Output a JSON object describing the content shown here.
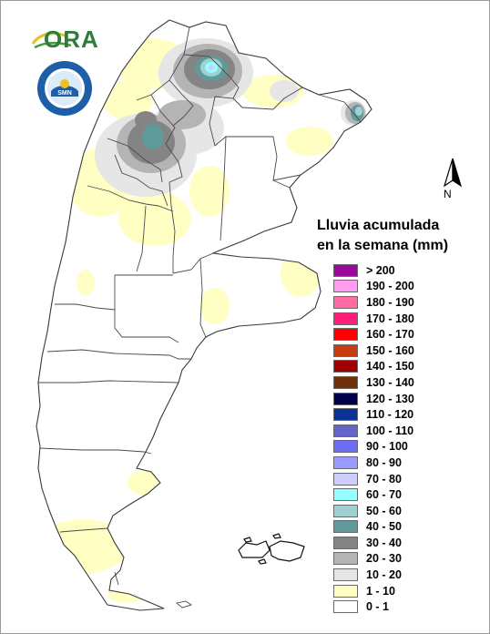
{
  "logo": {
    "text": "ORA"
  },
  "seal": {
    "text": "SERVICIO METEOROLÓGICO NACIONAL · ARGENTINA",
    "inner": "SMN"
  },
  "north_arrow": {
    "label": "N"
  },
  "legend": {
    "title_line1": "Lluvia acumulada",
    "title_line2": "en la semana (mm)",
    "items": [
      {
        "label": "> 200",
        "color": "#9a0a9a"
      },
      {
        "label": "190 - 200",
        "color": "#ff9cf0"
      },
      {
        "label": "180 - 190",
        "color": "#ff6ba2"
      },
      {
        "label": "170 - 180",
        "color": "#ff1f7a"
      },
      {
        "label": "160 - 170",
        "color": "#ff0000"
      },
      {
        "label": "150 - 160",
        "color": "#c83c12"
      },
      {
        "label": "140 - 150",
        "color": "#a00000"
      },
      {
        "label": "130 - 140",
        "color": "#6e2f0a"
      },
      {
        "label": "120 - 130",
        "color": "#00004a"
      },
      {
        "label": "110 - 120",
        "color": "#0a3296"
      },
      {
        "label": "100 - 110",
        "color": "#6464c8"
      },
      {
        "label": "90 - 100",
        "color": "#6e6ef5"
      },
      {
        "label": "80 - 90",
        "color": "#9a9aff"
      },
      {
        "label": "70 - 80",
        "color": "#cdcdff"
      },
      {
        "label": "60 - 70",
        "color": "#96ffff"
      },
      {
        "label": "50 - 60",
        "color": "#9ed2d2"
      },
      {
        "label": "40 - 50",
        "color": "#609a9a"
      },
      {
        "label": "30 - 40",
        "color": "#848484"
      },
      {
        "label": "20 - 30",
        "color": "#b4b4b4"
      },
      {
        "label": "10 - 20",
        "color": "#e6e6e6"
      },
      {
        "label": "1 - 10",
        "color": "#ffffc4"
      },
      {
        "label": "0 - 1",
        "color": "#ffffff"
      }
    ]
  },
  "colors": {
    "border": "#555555",
    "background": "#ffffff",
    "logo_green": "#2f7d3a",
    "seal_blue": "#1c5fa8"
  }
}
